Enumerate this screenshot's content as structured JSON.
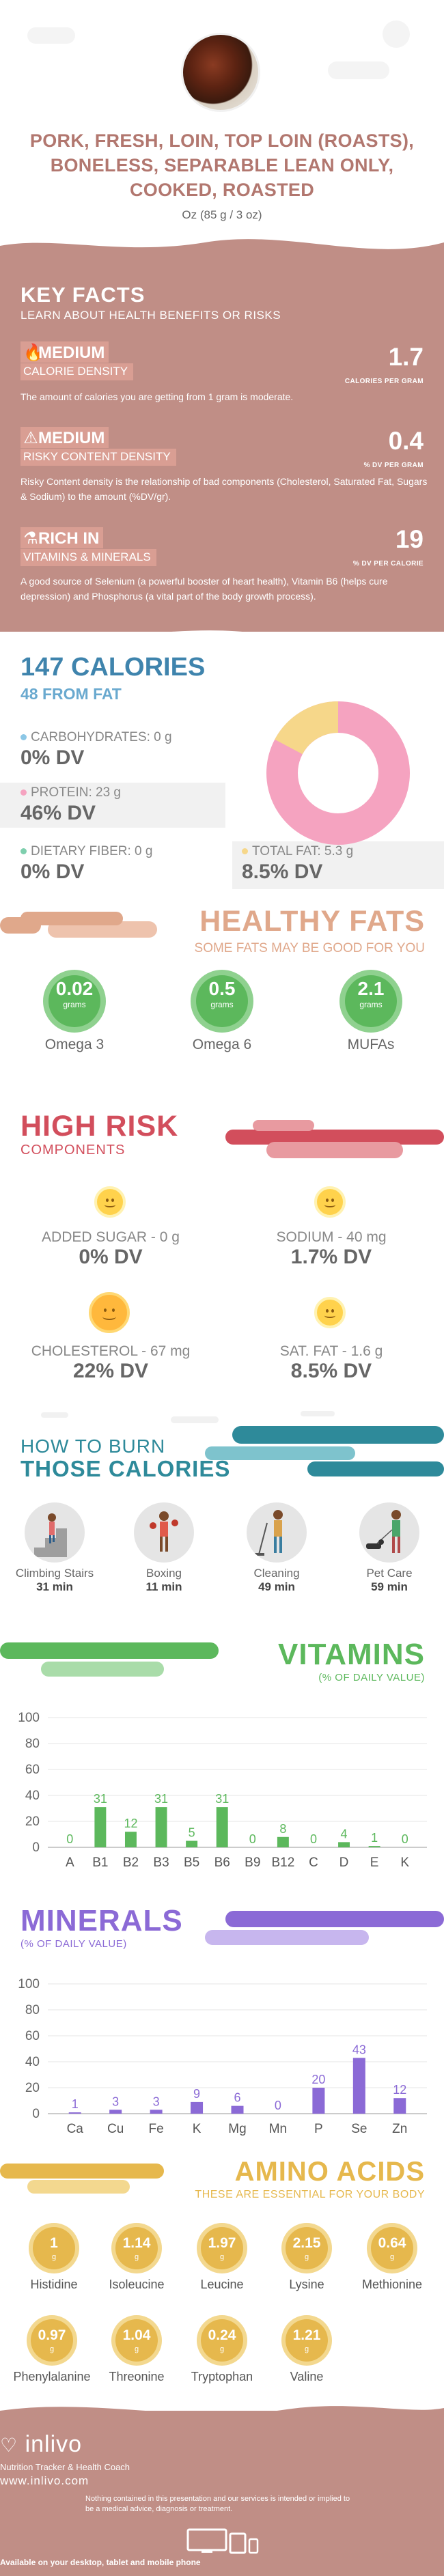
{
  "header": {
    "title": "PORK, FRESH, LOIN, TOP LOIN (ROASTS), BONELESS, SEPARABLE LEAN ONLY, COOKED, ROASTED",
    "serving": "Oz (85 g / 3 oz)"
  },
  "key_facts": {
    "title": "KEY FACTS",
    "subtitle": "LEARN ABOUT HEALTH BENEFITS OR RISKS",
    "calorie_density": {
      "level": "MEDIUM",
      "label": "CALORIE DENSITY",
      "value": "1.7",
      "unit": "CALORIES PER GRAM",
      "description": "The amount of calories you are getting from 1 gram is moderate."
    },
    "risky_content": {
      "level": "MEDIUM",
      "label": "RISKY CONTENT DENSITY",
      "value": "0.4",
      "unit": "% DV PER GRAM",
      "description": "Risky Content density is the relationship of bad components (Cholesterol, Saturated Fat, Sugars & Sodium) to the amount (%DV/gr)."
    },
    "vitamins_minerals": {
      "level": "RICH IN",
      "label": "VITAMINS & MINERALS",
      "value": "19",
      "unit": "% DV PER CALORIE",
      "description": "A good source of Selenium (a powerful booster of heart health), Vitamin B6 (helps cure depression) and Phosphorus (a vital part of the body growth process)."
    }
  },
  "calories": {
    "title": "147 CALORIES",
    "from_fat": "48 FROM FAT",
    "carbs": {
      "label": "CARBOHYDRATES: 0 g",
      "dv": "0% DV"
    },
    "protein": {
      "label": "PROTEIN: 23 g",
      "dv": "46% DV"
    },
    "fiber": {
      "label": "DIETARY FIBER: 0 g",
      "dv": "0% DV"
    },
    "fat": {
      "label": "TOTAL FAT: 5.3 g",
      "dv": "8.5% DV"
    },
    "colors": {
      "carbs": "#8cc7e6",
      "protein": "#f5a3c0",
      "fiber": "#7fcfae",
      "fat": "#f6d78a"
    }
  },
  "healthy_fats": {
    "title": "HEALTHY FATS",
    "subtitle": "SOME FATS MAY BE GOOD FOR YOU",
    "items": [
      {
        "value": "0.02",
        "unit": "grams",
        "name": "Omega 3"
      },
      {
        "value": "0.5",
        "unit": "grams",
        "name": "Omega 6"
      },
      {
        "value": "2.1",
        "unit": "grams",
        "name": "MUFAs"
      }
    ]
  },
  "high_risk": {
    "title": "HIGH RISK",
    "subtitle": "COMPONENTS",
    "items": [
      {
        "label": "ADDED SUGAR - 0 g",
        "dv": "0% DV"
      },
      {
        "label": "SODIUM - 40 mg",
        "dv": "1.7% DV"
      },
      {
        "label": "CHOLESTEROL - 67 mg",
        "dv": "22% DV"
      },
      {
        "label": "SAT. FAT - 1.6 g",
        "dv": "8.5% DV"
      }
    ]
  },
  "burn": {
    "title_line1": "HOW TO BURN",
    "title_line2": "THOSE CALORIES",
    "activities": [
      {
        "name": "Climbing Stairs",
        "minutes": "31 min"
      },
      {
        "name": "Boxing",
        "minutes": "11 min"
      },
      {
        "name": "Cleaning",
        "minutes": "49 min"
      },
      {
        "name": "Pet Care",
        "minutes": "59 min"
      }
    ]
  },
  "vitamins": {
    "title": "VITAMINS",
    "subtitle": "(% OF DAILY VALUE)"
  },
  "minerals": {
    "title": "MINERALS",
    "subtitle": "(% OF DAILY VALUE)"
  },
  "chart_data": [
    {
      "type": "bar",
      "title": "VITAMINS",
      "subtitle": "(% OF DAILY VALUE)",
      "categories": [
        "A",
        "B1",
        "B2",
        "B3",
        "B5",
        "B6",
        "B9",
        "B12",
        "C",
        "D",
        "E",
        "K"
      ],
      "values": [
        0,
        31,
        12,
        31,
        5,
        31,
        0,
        8,
        0,
        4,
        1,
        0
      ],
      "ylim": [
        0,
        100
      ],
      "yticks": [
        0,
        20,
        40,
        60,
        80,
        100
      ],
      "color": "#5cb85c",
      "grid": true
    },
    {
      "type": "bar",
      "title": "MINERALS",
      "subtitle": "(% OF DAILY VALUE)",
      "categories": [
        "Ca",
        "Cu",
        "Fe",
        "K",
        "Mg",
        "Mn",
        "P",
        "Se",
        "Zn"
      ],
      "values": [
        1,
        3,
        3,
        9,
        6,
        0,
        20,
        43,
        12
      ],
      "ylim": [
        0,
        100
      ],
      "yticks": [
        0,
        20,
        40,
        60,
        80,
        100
      ],
      "color": "#8b6ad6",
      "grid": true
    }
  ],
  "amino_acids": {
    "title": "AMINO ACIDS",
    "subtitle": "THESE ARE ESSENTIAL FOR YOUR BODY",
    "items": [
      {
        "value": "1",
        "unit": "g",
        "name": "Histidine"
      },
      {
        "value": "1.14",
        "unit": "g",
        "name": "Isoleucine"
      },
      {
        "value": "1.97",
        "unit": "g",
        "name": "Leucine"
      },
      {
        "value": "2.15",
        "unit": "g",
        "name": "Lysine"
      },
      {
        "value": "0.64",
        "unit": "g",
        "name": "Methionine"
      },
      {
        "value": "0.97",
        "unit": "g",
        "name": "Phenylalanine"
      },
      {
        "value": "1.04",
        "unit": "g",
        "name": "Threonine"
      },
      {
        "value": "0.24",
        "unit": "g",
        "name": "Tryptophan"
      },
      {
        "value": "1.21",
        "unit": "g",
        "name": "Valine"
      }
    ]
  },
  "footer": {
    "brand": "inlivo",
    "tagline": "Nutrition Tracker & Health Coach",
    "site": "www.inlivo.com",
    "disclaimer": "Nothing contained in this presentation and our services is intended or implied to be a medical advice, diagnosis or treatment.",
    "available": "Available on your desktop, tablet and mobile phone"
  }
}
